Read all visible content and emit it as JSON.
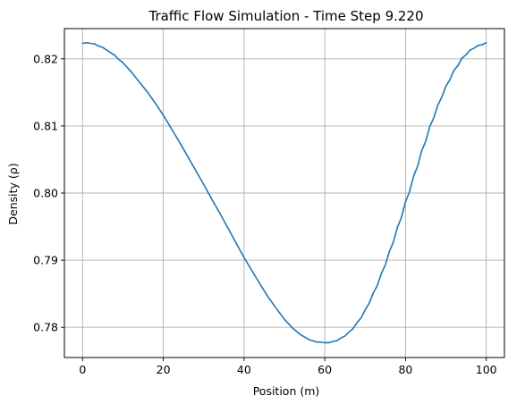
{
  "chart_data": {
    "type": "line",
    "title": "Traffic Flow Simulation - Time Step 9.220",
    "xlabel": "Position (m)",
    "ylabel": "Density (ρ)",
    "xlim": [
      -4.5,
      104.5
    ],
    "ylim": [
      0.7755,
      0.8245
    ],
    "xticks": [
      0,
      20,
      40,
      60,
      80,
      100
    ],
    "xtick_labels": [
      "0",
      "20",
      "40",
      "60",
      "80",
      "100"
    ],
    "yticks": [
      0.78,
      0.79,
      0.8,
      0.81,
      0.82
    ],
    "ytick_labels": [
      "0.78",
      "0.79",
      "0.80",
      "0.81",
      "0.82"
    ],
    "grid": true,
    "legend": "none",
    "color": "#1f77b4",
    "series": [
      {
        "x": [
          0,
          1,
          2,
          3,
          4,
          5,
          6,
          7,
          8,
          9,
          10,
          12,
          14,
          16,
          18,
          20,
          22,
          24,
          26,
          28,
          30,
          32,
          34,
          36,
          38,
          40,
          42,
          44,
          46,
          48,
          50,
          52,
          54,
          56,
          58,
          59,
          60,
          61,
          62,
          63,
          64,
          65,
          66,
          67,
          68,
          69,
          70,
          71,
          72,
          73,
          74,
          75,
          76,
          77,
          78,
          79,
          80,
          81,
          82,
          83,
          84,
          85,
          86,
          87,
          88,
          89,
          90,
          91,
          92,
          93,
          94,
          95,
          96,
          97,
          98,
          99,
          100
        ],
        "values": [
          0.8223,
          0.8224,
          0.8223,
          0.8222,
          0.8219,
          0.8217,
          0.8213,
          0.8209,
          0.8205,
          0.8199,
          0.8194,
          0.8181,
          0.8166,
          0.8151,
          0.8134,
          0.8116,
          0.8096,
          0.8076,
          0.8055,
          0.8034,
          0.8013,
          0.7991,
          0.797,
          0.7948,
          0.7926,
          0.7904,
          0.7884,
          0.7864,
          0.7845,
          0.7828,
          0.7812,
          0.7799,
          0.7789,
          0.7782,
          0.7778,
          0.7778,
          0.7777,
          0.7777,
          0.7779,
          0.778,
          0.7784,
          0.7787,
          0.7793,
          0.7798,
          0.7807,
          0.7814,
          0.7826,
          0.7836,
          0.7851,
          0.7862,
          0.788,
          0.7893,
          0.7913,
          0.7927,
          0.7949,
          0.7964,
          0.7987,
          0.8002,
          0.8025,
          0.804,
          0.8063,
          0.8077,
          0.8099,
          0.8112,
          0.8131,
          0.8143,
          0.8159,
          0.8169,
          0.8183,
          0.819,
          0.8201,
          0.8206,
          0.8213,
          0.8216,
          0.822,
          0.8221,
          0.8224
        ]
      }
    ]
  }
}
